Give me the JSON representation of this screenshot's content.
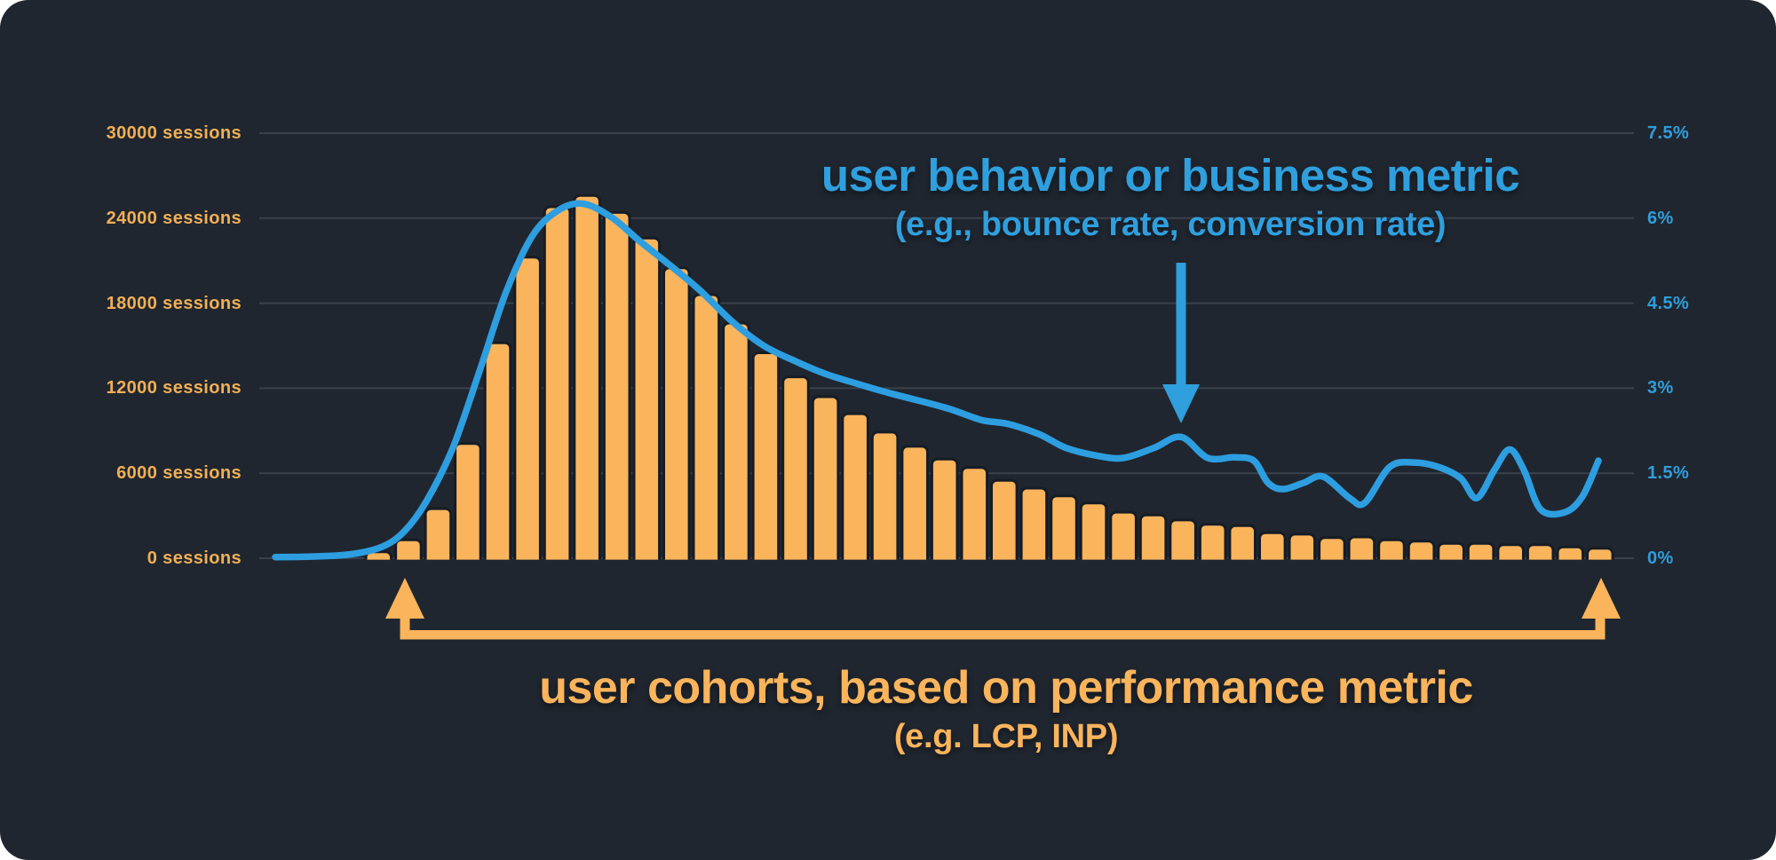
{
  "colors": {
    "page_background": "#FFFFFF",
    "card_background": "#20262F",
    "grid": "#3A414B",
    "bar_fill": "#F9B45C",
    "bar_outline": "#161C25",
    "line_stroke": "#2D9EE0",
    "left_axis_text": "#F0AF56",
    "right_axis_text": "#2F9EDC"
  },
  "annotations": {
    "behavior": {
      "title": "user behavior or business metric",
      "subtitle": "(e.g., bounce rate, conversion rate)",
      "color": "#2F9FDD"
    },
    "cohorts": {
      "title": "user cohorts, based on performance metric",
      "subtitle": "(e.g. LCP, INP)",
      "color": "#F9B45C"
    }
  },
  "chart_data": {
    "type": "combo: bar histogram + smoothed line",
    "left_axis": {
      "unit": "sessions",
      "range": [
        0,
        30000
      ],
      "tick_values": [
        30000,
        24000,
        18000,
        12000,
        6000,
        0
      ],
      "labels": [
        "30000 sessions",
        "24000 sessions",
        "18000 sessions",
        "12000 sessions",
        "6000 sessions",
        "0 sessions"
      ]
    },
    "right_axis": {
      "unit": "percent",
      "range": [
        0,
        7.5
      ],
      "tick_values": [
        7.5,
        6,
        4.5,
        3,
        1.5,
        0
      ],
      "labels": [
        "7.5%",
        "6%",
        "4.5%",
        "3%",
        "1.5%",
        "0%"
      ]
    },
    "grid": {
      "show": true,
      "orientation": "horizontal"
    },
    "bars": {
      "name": "sessions per performance-metric cohort",
      "values": [
        450,
        1300,
        3500,
        8100,
        15200,
        21250,
        24800,
        25600,
        24400,
        22600,
        20500,
        18600,
        16600,
        14500,
        12800,
        11400,
        10200,
        8900,
        7900,
        7000,
        6400,
        5500,
        4950,
        4400,
        3900,
        3250,
        3050,
        2700,
        2400,
        2300,
        1800,
        1700,
        1450,
        1500,
        1300,
        1200,
        1050,
        1050,
        950,
        950,
        800,
        700
      ]
    },
    "line": {
      "name": "user behavior / business metric per cohort",
      "unit": "percent",
      "points_x_pct": [
        [
          310,
          0.02
        ],
        [
          350,
          0.03
        ],
        [
          395,
          0.07
        ],
        [
          430,
          0.2
        ],
        [
          455,
          0.47
        ],
        [
          480,
          1.0
        ],
        [
          510,
          1.95
        ],
        [
          540,
          3.3
        ],
        [
          570,
          4.7
        ],
        [
          600,
          5.7
        ],
        [
          630,
          6.15
        ],
        [
          658,
          6.25
        ],
        [
          690,
          6.0
        ],
        [
          720,
          5.6
        ],
        [
          760,
          5.1
        ],
        [
          790,
          4.7
        ],
        [
          825,
          4.17
        ],
        [
          860,
          3.75
        ],
        [
          895,
          3.48
        ],
        [
          930,
          3.25
        ],
        [
          965,
          3.08
        ],
        [
          1000,
          2.92
        ],
        [
          1035,
          2.78
        ],
        [
          1070,
          2.63
        ],
        [
          1105,
          2.44
        ],
        [
          1135,
          2.37
        ],
        [
          1170,
          2.19
        ],
        [
          1200,
          1.95
        ],
        [
          1235,
          1.81
        ],
        [
          1265,
          1.77
        ],
        [
          1300,
          1.95
        ],
        [
          1330,
          2.14
        ],
        [
          1360,
          1.77
        ],
        [
          1390,
          1.78
        ],
        [
          1412,
          1.72
        ],
        [
          1428,
          1.33
        ],
        [
          1445,
          1.22
        ],
        [
          1468,
          1.33
        ],
        [
          1490,
          1.44
        ],
        [
          1520,
          1.06
        ],
        [
          1537,
          0.98
        ],
        [
          1565,
          1.61
        ],
        [
          1592,
          1.69
        ],
        [
          1620,
          1.61
        ],
        [
          1645,
          1.41
        ],
        [
          1663,
          1.06
        ],
        [
          1683,
          1.56
        ],
        [
          1700,
          1.92
        ],
        [
          1716,
          1.56
        ],
        [
          1735,
          0.86
        ],
        [
          1762,
          0.81
        ],
        [
          1782,
          1.09
        ],
        [
          1800,
          1.72
        ]
      ]
    }
  }
}
